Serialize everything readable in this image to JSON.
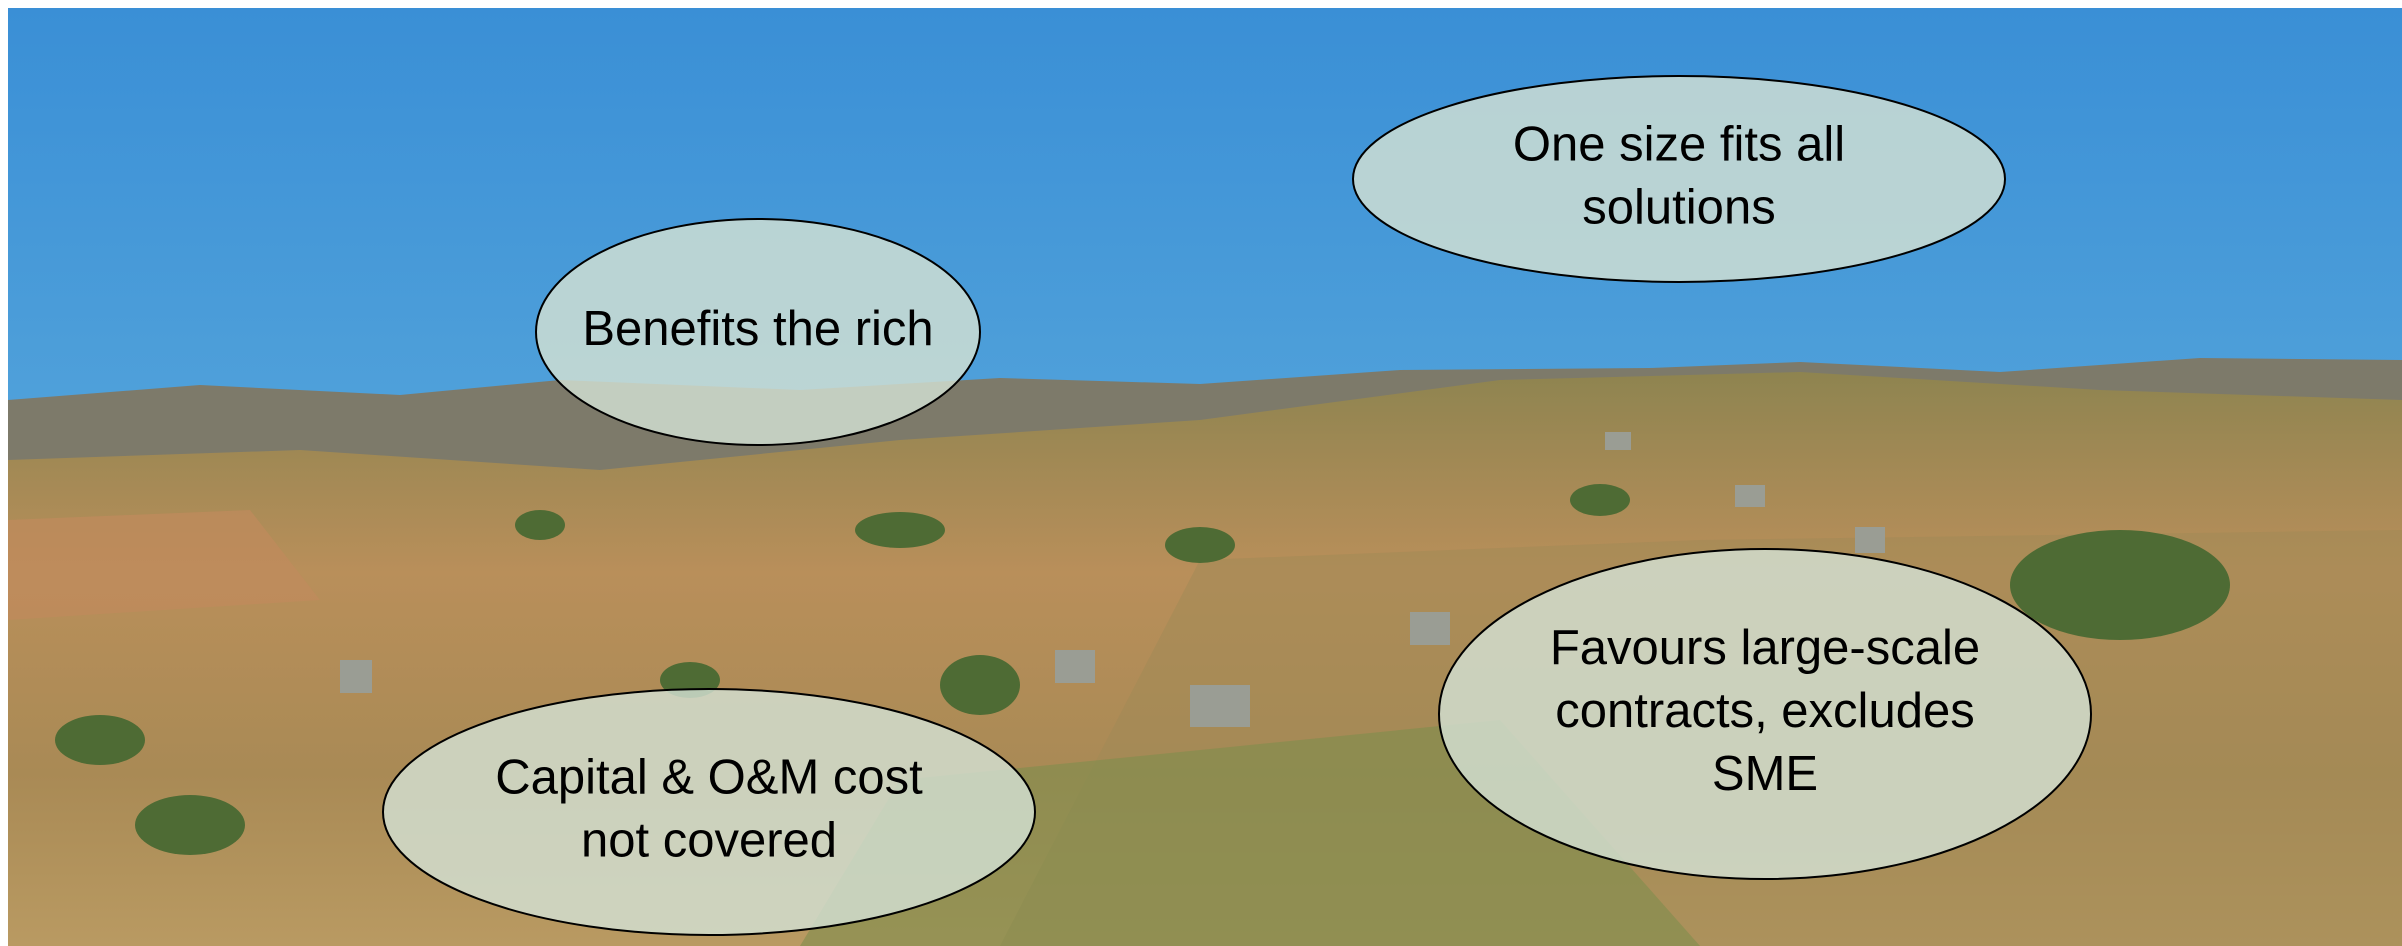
{
  "callouts": [
    {
      "lines": [
        "One size fits all",
        "solutions"
      ]
    },
    {
      "lines": [
        "Benefits the rich"
      ]
    },
    {
      "lines": [
        "Capital & O&M cost",
        "not covered"
      ]
    },
    {
      "lines": [
        "Favours large-scale",
        "contracts, excludes",
        "SME"
      ]
    }
  ]
}
